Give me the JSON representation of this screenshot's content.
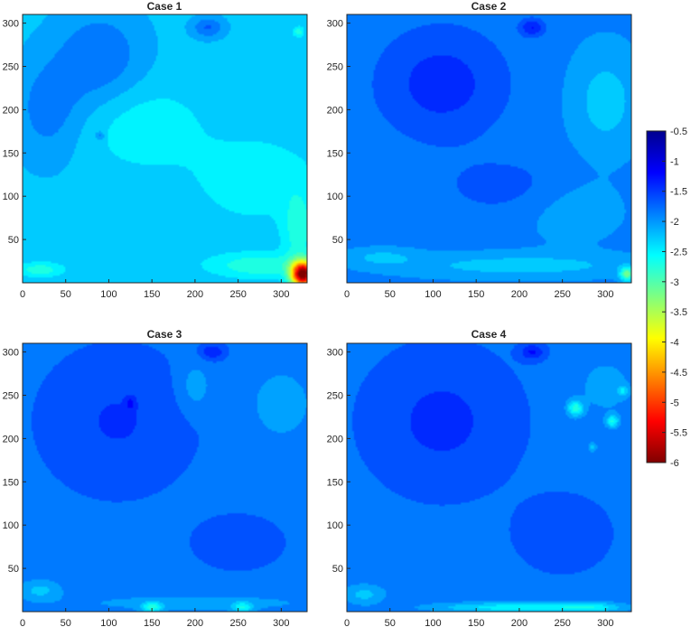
{
  "chart_data": {
    "type": "heatmap",
    "subtype": "filled-contour",
    "colormap": "jet",
    "colorbar": {
      "range": [
        -6,
        -0.5
      ],
      "ticks": [
        -0.5,
        -1,
        -1.5,
        -2,
        -2.5,
        -3,
        -3.5,
        -4,
        -4.5,
        -5,
        -5.5,
        -6
      ],
      "tick_labels": [
        "-0.5",
        "-1",
        "-1.5",
        "-2",
        "-2.5",
        "-3",
        "-3.5",
        "-4",
        "-4.5",
        "-5",
        "-5.5",
        "-6"
      ],
      "placement": "right"
    },
    "xlim": [
      0,
      330
    ],
    "ylim": [
      0,
      310
    ],
    "xticks": [
      0,
      50,
      100,
      150,
      200,
      250,
      300
    ],
    "yticks": [
      50,
      100,
      150,
      200,
      250,
      300
    ],
    "panels": [
      {
        "title": "Case 1",
        "base": -1.7,
        "features": [
          {
            "x": 90,
            "y": 260,
            "sx": 50,
            "sy": 55,
            "v": 0.55
          },
          {
            "x": 30,
            "y": 200,
            "sx": 40,
            "sy": 60,
            "v": 0.45
          },
          {
            "x": 215,
            "y": 295,
            "sx": 18,
            "sy": 12,
            "v": 0.6
          },
          {
            "x": 90,
            "y": 170,
            "sx": 5,
            "sy": 5,
            "v": 0.5
          },
          {
            "x": 270,
            "y": 120,
            "sx": 70,
            "sy": 50,
            "v": -0.35
          },
          {
            "x": 140,
            "y": 180,
            "sx": 70,
            "sy": 50,
            "v": -0.35
          },
          {
            "x": 325,
            "y": 10,
            "sx": 13,
            "sy": 14,
            "v": -4.3
          },
          {
            "x": 275,
            "y": 20,
            "sx": 55,
            "sy": 14,
            "v": -0.65
          },
          {
            "x": 320,
            "y": 60,
            "sx": 18,
            "sy": 45,
            "v": -0.55
          },
          {
            "x": 20,
            "y": 15,
            "sx": 25,
            "sy": 8,
            "v": -0.6
          },
          {
            "x": 320,
            "y": 290,
            "sx": 6,
            "sy": 6,
            "v": -0.6
          },
          {
            "x": 120,
            "y": 40,
            "sx": 80,
            "sy": 30,
            "v": -0.15
          }
        ]
      },
      {
        "title": "Case 2",
        "base": -1.3,
        "features": [
          {
            "x": 110,
            "y": 230,
            "sx": 75,
            "sy": 65,
            "v": 0.55
          },
          {
            "x": 200,
            "y": 110,
            "sx": 90,
            "sy": 35,
            "v": 0.3
          },
          {
            "x": 215,
            "y": 295,
            "sx": 14,
            "sy": 10,
            "v": 0.65
          },
          {
            "x": 300,
            "y": 210,
            "sx": 40,
            "sy": 60,
            "v": -0.45
          },
          {
            "x": 260,
            "y": 90,
            "sx": 60,
            "sy": 40,
            "v": -0.3
          },
          {
            "x": 325,
            "y": 10,
            "sx": 8,
            "sy": 8,
            "v": -1.4
          },
          {
            "x": 200,
            "y": 20,
            "sx": 140,
            "sy": 14,
            "v": -0.45
          },
          {
            "x": 40,
            "y": 30,
            "sx": 40,
            "sy": 10,
            "v": -0.35
          }
        ]
      },
      {
        "title": "Case 3",
        "base": -1.2,
        "features": [
          {
            "x": 110,
            "y": 220,
            "sx": 80,
            "sy": 75,
            "v": 0.35
          },
          {
            "x": 220,
            "y": 300,
            "sx": 14,
            "sy": 9,
            "v": 0.55
          },
          {
            "x": 125,
            "y": 240,
            "sx": 5,
            "sy": 7,
            "v": 0.45
          },
          {
            "x": 250,
            "y": 80,
            "sx": 50,
            "sy": 30,
            "v": 0.25
          },
          {
            "x": 300,
            "y": 240,
            "sx": 40,
            "sy": 45,
            "v": -0.3
          },
          {
            "x": 200,
            "y": 260,
            "sx": 20,
            "sy": 30,
            "v": -0.35
          },
          {
            "x": 150,
            "y": 5,
            "sx": 12,
            "sy": 6,
            "v": -0.9
          },
          {
            "x": 255,
            "y": 5,
            "sx": 12,
            "sy": 6,
            "v": -0.75
          },
          {
            "x": 20,
            "y": 25,
            "sx": 25,
            "sy": 12,
            "v": -0.5
          },
          {
            "x": 200,
            "y": 10,
            "sx": 150,
            "sy": 10,
            "v": -0.3
          }
        ]
      },
      {
        "title": "Case 4",
        "base": -1.2,
        "features": [
          {
            "x": 110,
            "y": 220,
            "sx": 80,
            "sy": 75,
            "v": 0.4
          },
          {
            "x": 215,
            "y": 300,
            "sx": 14,
            "sy": 9,
            "v": 0.6
          },
          {
            "x": 250,
            "y": 90,
            "sx": 50,
            "sy": 40,
            "v": 0.3
          },
          {
            "x": 265,
            "y": 235,
            "sx": 9,
            "sy": 9,
            "v": -1.05
          },
          {
            "x": 308,
            "y": 220,
            "sx": 7,
            "sy": 7,
            "v": -0.9
          },
          {
            "x": 285,
            "y": 190,
            "sx": 5,
            "sy": 5,
            "v": -0.55
          },
          {
            "x": 320,
            "y": 255,
            "sx": 6,
            "sy": 6,
            "v": -0.6
          },
          {
            "x": 190,
            "y": 5,
            "sx": 90,
            "sy": 6,
            "v": -0.8
          },
          {
            "x": 280,
            "y": 5,
            "sx": 40,
            "sy": 6,
            "v": -0.7
          },
          {
            "x": 20,
            "y": 20,
            "sx": 25,
            "sy": 12,
            "v": -0.5
          },
          {
            "x": 300,
            "y": 260,
            "sx": 40,
            "sy": 40,
            "v": -0.25
          }
        ]
      }
    ]
  }
}
